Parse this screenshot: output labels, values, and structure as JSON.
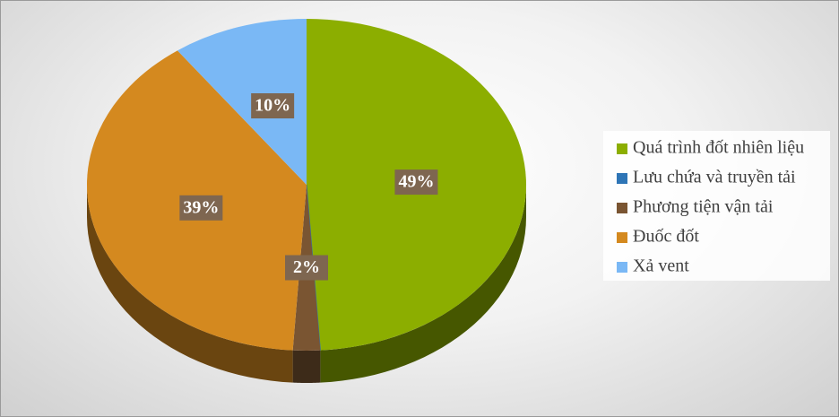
{
  "chart_data": {
    "type": "pie",
    "categories": [
      "Quá trình đốt nhiên liệu",
      "Lưu chứa và truyền tải",
      "Phương tiện vận tải",
      "Đuốc đốt",
      "Xả vent"
    ],
    "values": [
      49,
      0,
      2,
      39,
      10
    ],
    "value_labels": [
      "49%",
      null,
      "2%",
      "39%",
      "10%"
    ],
    "colors": [
      "#8cae00",
      "#2e75b6",
      "#7a5532",
      "#d4891f",
      "#7ab8f5"
    ],
    "legend": "right"
  }
}
